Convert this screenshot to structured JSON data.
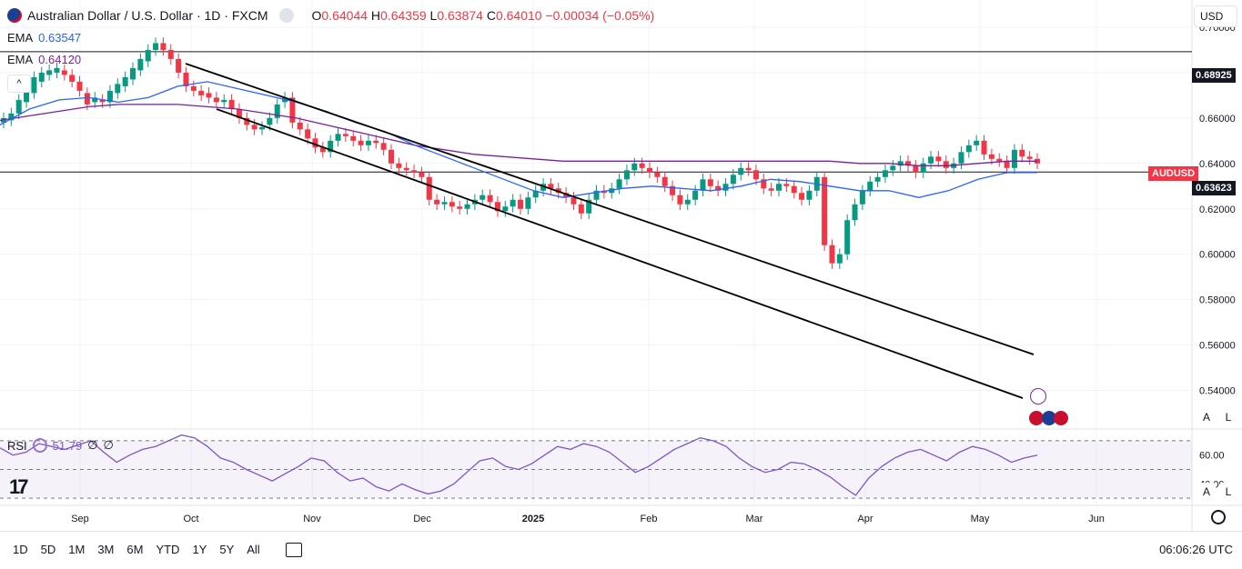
{
  "header": {
    "symbol_title": "Australian Dollar / U.S. Dollar · 1D · FXCM",
    "ohlc": {
      "open_label": "O",
      "open": "0.64044",
      "high_label": "H",
      "high": "0.64359",
      "low_label": "L",
      "low": "0.63874",
      "close_label": "C",
      "close": "0.64010",
      "change": "−0.00034 (−0.05%)"
    }
  },
  "indicators": {
    "ema1_label": "EMA",
    "ema1_value": "0.63547",
    "ema2_label": "EMA",
    "ema2_value": "0.64120"
  },
  "currency_button": "USD",
  "tags": {
    "resistance": "0.68925",
    "support": "0.63623",
    "symbol": "AUDUSD"
  },
  "colors": {
    "up": "#089981",
    "down": "#f23645",
    "ema_fast": "#2962ff",
    "ema_slow": "#7b1fa2",
    "rsi": "#7e57c2",
    "channel": "#000000"
  },
  "rsi": {
    "label": "RSI",
    "value": "51.79",
    "extra1": "∅",
    "extra2": "∅"
  },
  "buttons": {
    "auto": "A",
    "log": "L",
    "collapse": "^"
  },
  "bottom": {
    "ranges": [
      "1D",
      "5D",
      "1M",
      "3M",
      "6M",
      "YTD",
      "1Y",
      "5Y",
      "All"
    ],
    "time": "06:06:26 UTC"
  },
  "logo_text": "17",
  "chart_data": {
    "type": "candlestick",
    "title": "Australian Dollar / U.S. Dollar · 1D · FXCM",
    "price_axis": {
      "ticks": [
        "0.70000",
        "0.68000",
        "0.66000",
        "0.64000",
        "0.62000",
        "0.60000",
        "0.58000",
        "0.56000",
        "0.54000"
      ],
      "range": [
        0.523,
        0.712
      ]
    },
    "time_axis": {
      "ticks": [
        "Sep",
        "Oct",
        "Nov",
        "Dec",
        "2025",
        "Feb",
        "Mar",
        "Apr",
        "May",
        "Jun"
      ]
    },
    "horizontal_lines": [
      0.68925,
      0.63623
    ],
    "rsi_axis": {
      "ticks": [
        "60.00",
        "40.00"
      ],
      "levels": [
        70,
        50,
        30
      ]
    },
    "series_points": [
      [
        0.658,
        0.66
      ],
      [
        0.659,
        0.662
      ],
      [
        0.662,
        0.668
      ],
      [
        0.667,
        0.672
      ],
      [
        0.671,
        0.678
      ],
      [
        0.676,
        0.68
      ],
      [
        0.679,
        0.681
      ],
      [
        0.68,
        0.682
      ],
      [
        0.681,
        0.679
      ],
      [
        0.679,
        0.676
      ],
      [
        0.676,
        0.672
      ],
      [
        0.671,
        0.666
      ],
      [
        0.667,
        0.669
      ],
      [
        0.668,
        0.667
      ],
      [
        0.667,
        0.672
      ],
      [
        0.671,
        0.675
      ],
      [
        0.674,
        0.678
      ],
      [
        0.677,
        0.682
      ],
      [
        0.681,
        0.686
      ],
      [
        0.685,
        0.69
      ],
      [
        0.69,
        0.693
      ],
      [
        0.693,
        0.69
      ],
      [
        0.69,
        0.686
      ],
      [
        0.686,
        0.68
      ],
      [
        0.68,
        0.674
      ],
      [
        0.674,
        0.672
      ],
      [
        0.672,
        0.67
      ],
      [
        0.671,
        0.669
      ],
      [
        0.669,
        0.667
      ],
      [
        0.667,
        0.668
      ],
      [
        0.668,
        0.664
      ],
      [
        0.664,
        0.66
      ],
      [
        0.66,
        0.657
      ],
      [
        0.657,
        0.655
      ],
      [
        0.655,
        0.656
      ],
      [
        0.657,
        0.66
      ],
      [
        0.66,
        0.666
      ],
      [
        0.667,
        0.669
      ],
      [
        0.669,
        0.658
      ],
      [
        0.658,
        0.655
      ],
      [
        0.655,
        0.651
      ],
      [
        0.651,
        0.647
      ],
      [
        0.647,
        0.645
      ],
      [
        0.645,
        0.65
      ],
      [
        0.65,
        0.653
      ],
      [
        0.653,
        0.652
      ],
      [
        0.652,
        0.65
      ],
      [
        0.65,
        0.648
      ],
      [
        0.648,
        0.65
      ],
      [
        0.65,
        0.649
      ],
      [
        0.649,
        0.646
      ],
      [
        0.646,
        0.64
      ],
      [
        0.64,
        0.638
      ],
      [
        0.638,
        0.637
      ],
      [
        0.637,
        0.636
      ],
      [
        0.636,
        0.634
      ],
      [
        0.634,
        0.624
      ],
      [
        0.624,
        0.622
      ],
      [
        0.622,
        0.623
      ],
      [
        0.623,
        0.621
      ],
      [
        0.621,
        0.62
      ],
      [
        0.62,
        0.622
      ],
      [
        0.622,
        0.624
      ],
      [
        0.624,
        0.626
      ],
      [
        0.626,
        0.623
      ],
      [
        0.623,
        0.619
      ],
      [
        0.619,
        0.621
      ],
      [
        0.621,
        0.624
      ],
      [
        0.624,
        0.62
      ],
      [
        0.62,
        0.625
      ],
      [
        0.625,
        0.628
      ],
      [
        0.628,
        0.631
      ],
      [
        0.631,
        0.629
      ],
      [
        0.629,
        0.627
      ],
      [
        0.627,
        0.625
      ],
      [
        0.625,
        0.622
      ],
      [
        0.622,
        0.618
      ],
      [
        0.618,
        0.624
      ],
      [
        0.624,
        0.628
      ],
      [
        0.628,
        0.627
      ],
      [
        0.627,
        0.629
      ],
      [
        0.629,
        0.633
      ],
      [
        0.633,
        0.637
      ],
      [
        0.637,
        0.64
      ],
      [
        0.64,
        0.638
      ],
      [
        0.638,
        0.636
      ],
      [
        0.636,
        0.634
      ],
      [
        0.634,
        0.63
      ],
      [
        0.63,
        0.626
      ],
      [
        0.626,
        0.622
      ],
      [
        0.622,
        0.624
      ],
      [
        0.624,
        0.628
      ],
      [
        0.628,
        0.633
      ],
      [
        0.633,
        0.63
      ],
      [
        0.63,
        0.628
      ],
      [
        0.628,
        0.631
      ],
      [
        0.631,
        0.635
      ],
      [
        0.635,
        0.638
      ],
      [
        0.638,
        0.637
      ],
      [
        0.637,
        0.633
      ],
      [
        0.633,
        0.629
      ],
      [
        0.629,
        0.628
      ],
      [
        0.628,
        0.631
      ],
      [
        0.631,
        0.63
      ],
      [
        0.63,
        0.627
      ],
      [
        0.627,
        0.624
      ],
      [
        0.624,
        0.628
      ],
      [
        0.628,
        0.634
      ],
      [
        0.634,
        0.604
      ],
      [
        0.604,
        0.596
      ],
      [
        0.596,
        0.6
      ],
      [
        0.6,
        0.615
      ],
      [
        0.615,
        0.622
      ],
      [
        0.622,
        0.628
      ],
      [
        0.628,
        0.632
      ],
      [
        0.632,
        0.634
      ],
      [
        0.634,
        0.637
      ],
      [
        0.637,
        0.639
      ],
      [
        0.639,
        0.641
      ],
      [
        0.641,
        0.639
      ],
      [
        0.639,
        0.636
      ],
      [
        0.636,
        0.64
      ],
      [
        0.64,
        0.643
      ],
      [
        0.643,
        0.641
      ],
      [
        0.641,
        0.638
      ],
      [
        0.638,
        0.64
      ],
      [
        0.64,
        0.645
      ],
      [
        0.645,
        0.648
      ],
      [
        0.648,
        0.65
      ],
      [
        0.65,
        0.644
      ],
      [
        0.644,
        0.642
      ],
      [
        0.642,
        0.641
      ],
      [
        0.641,
        0.638
      ],
      [
        0.638,
        0.646
      ],
      [
        0.646,
        0.643
      ],
      [
        0.643,
        0.642
      ],
      [
        0.642,
        0.64
      ]
    ],
    "ema_fast": [
      0.657,
      0.664,
      0.668,
      0.669,
      0.667,
      0.669,
      0.674,
      0.676,
      0.673,
      0.67,
      0.667,
      0.663,
      0.658,
      0.654,
      0.648,
      0.643,
      0.638,
      0.633,
      0.628,
      0.625,
      0.627,
      0.629,
      0.63,
      0.629,
      0.628,
      0.63,
      0.633,
      0.632,
      0.63,
      0.628,
      0.628,
      0.625,
      0.628,
      0.633,
      0.636,
      0.636
    ],
    "ema_slow": [
      0.659,
      0.661,
      0.663,
      0.665,
      0.666,
      0.666,
      0.666,
      0.665,
      0.664,
      0.662,
      0.66,
      0.657,
      0.654,
      0.651,
      0.648,
      0.646,
      0.644,
      0.643,
      0.642,
      0.641,
      0.641,
      0.641,
      0.641,
      0.641,
      0.641,
      0.641,
      0.641,
      0.641,
      0.641,
      0.64,
      0.64,
      0.639,
      0.639,
      0.64,
      0.641,
      0.641
    ],
    "rsi_values": [
      65,
      60,
      62,
      68,
      66,
      64,
      67,
      70,
      62,
      55,
      60,
      64,
      66,
      70,
      74,
      72,
      66,
      58,
      55,
      50,
      46,
      42,
      47,
      52,
      58,
      56,
      48,
      42,
      44,
      38,
      35,
      40,
      36,
      33,
      35,
      40,
      48,
      56,
      58,
      52,
      50,
      54,
      60,
      66,
      64,
      68,
      66,
      62,
      55,
      48,
      52,
      58,
      64,
      68,
      72,
      70,
      66,
      58,
      52,
      48,
      50,
      55,
      54,
      50,
      45,
      38,
      32,
      44,
      52,
      58,
      62,
      64,
      60,
      56,
      62,
      66,
      64,
      60,
      55,
      58,
      60
    ]
  }
}
